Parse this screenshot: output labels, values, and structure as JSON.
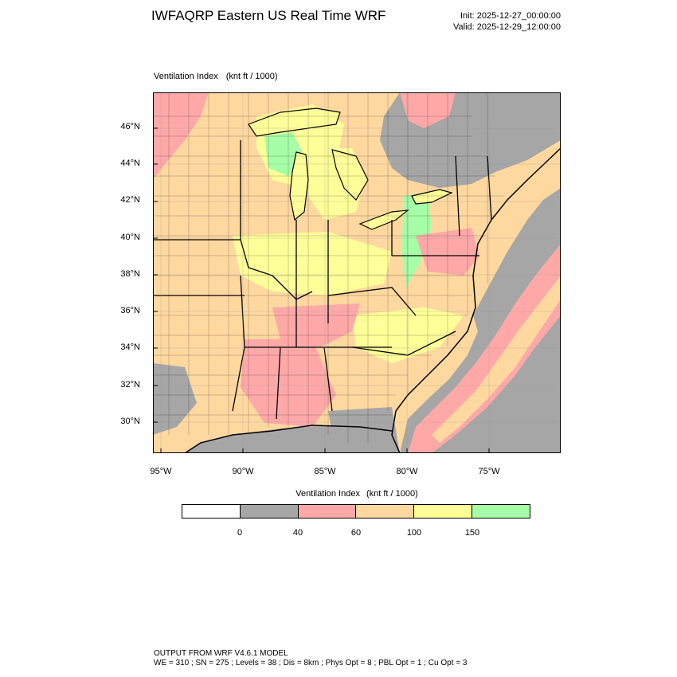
{
  "header": {
    "title": "IWFAQRP Eastern US Real Time WRF",
    "init": "Init: 2025-12-27_00:00:00",
    "valid": "Valid: 2025-12-29_12:00:00"
  },
  "map": {
    "variable": "Ventilation Index",
    "units": "(knt ft / 1000)",
    "lat_labels": [
      "46°N",
      "44°N",
      "42°N",
      "40°N",
      "38°N",
      "36°N",
      "34°N",
      "32°N",
      "30°N"
    ],
    "lon_labels": [
      "95°W",
      "90°W",
      "85°W",
      "80°W",
      "75°W"
    ],
    "colors": {
      "ocean_gray": "#a6a6a6",
      "pink": "#ffa8a8",
      "orange": "#ffd8a0",
      "yellow": "#ffff99",
      "green": "#a6ffa6",
      "white": "#ffffff"
    }
  },
  "legend": {
    "title": "Ventilation Index",
    "units": "(knt ft / 1000)",
    "colors": [
      "#ffffff",
      "#a6a6a6",
      "#ffa8a8",
      "#ffd8a0",
      "#ffff99",
      "#a6ffa6"
    ],
    "ticks": [
      "0",
      "40",
      "60",
      "100",
      "150"
    ]
  },
  "footer": {
    "line1": "OUTPUT FROM WRF V4.6.1 MODEL",
    "line2": "WE = 310 ; SN = 275 ; Levels = 38 ; Dis = 8km ; Phys Opt = 8 ; PBL Opt = 1 ; Cu Opt = 3"
  }
}
